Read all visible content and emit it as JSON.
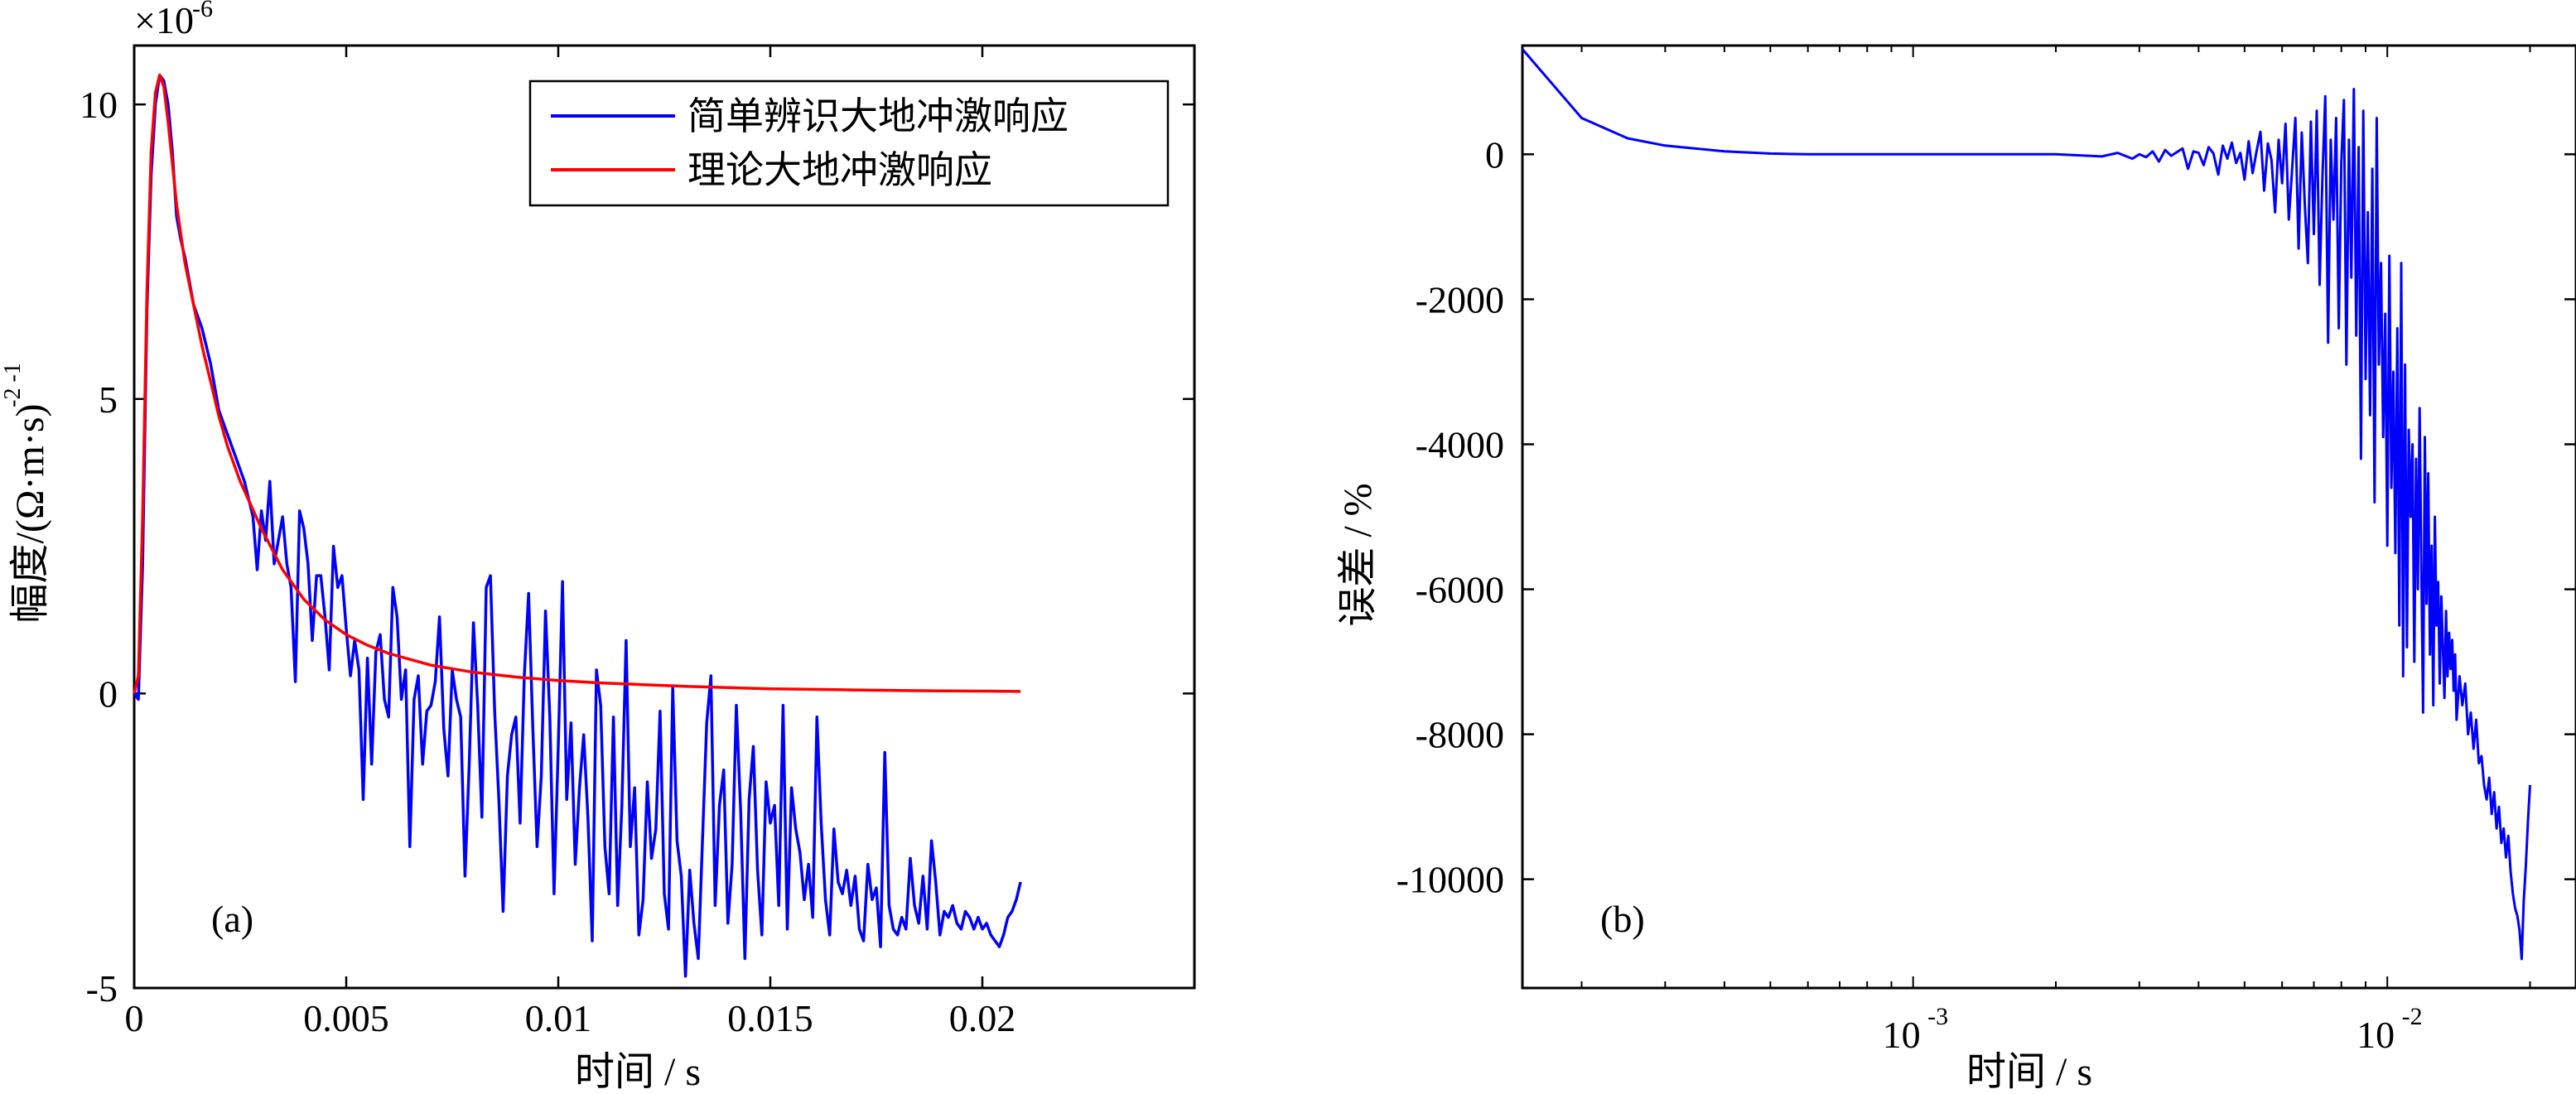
{
  "chart_data": [
    {
      "type": "line",
      "panel_label": "(a)",
      "xlabel": "时间 / s",
      "ylabel": "幅度/(Ω·m·s)",
      "ylabel_sup": "-2 -1",
      "yscale_multiplier": "×10",
      "yscale_exponent": "-6",
      "xlim": [
        0,
        0.025
      ],
      "ylim": [
        -5,
        11
      ],
      "xticks": [
        0,
        0.005,
        0.01,
        0.015,
        0.02
      ],
      "xtick_labels": [
        "0",
        "0.005",
        "0.01",
        "0.015",
        "0.02"
      ],
      "yticks": [
        -5,
        0,
        5,
        10
      ],
      "ytick_labels": [
        "-5",
        "0",
        "5",
        "10"
      ],
      "legend_position": "top-right",
      "series": [
        {
          "name": "简单辨识大地冲激响应",
          "color": "#0000ff",
          "x": [
            0,
            0.0001,
            0.0002,
            0.0003,
            0.0004,
            0.0005,
            0.0006,
            0.0007,
            0.0008,
            0.0009,
            0.001,
            0.0011,
            0.0012,
            0.0013,
            0.0014,
            0.0016,
            0.0018,
            0.002,
            0.0022,
            0.0024,
            0.0026,
            0.0028,
            0.0029,
            0.003,
            0.0031,
            0.0032,
            0.0033,
            0.0034,
            0.0035,
            0.0036,
            0.0037,
            0.0038,
            0.0039,
            0.004,
            0.0041,
            0.0042,
            0.0043,
            0.0044,
            0.0045,
            0.0046,
            0.0047,
            0.0048,
            0.0049,
            0.005,
            0.0051,
            0.0052,
            0.0053,
            0.0054,
            0.0055,
            0.0056,
            0.0057,
            0.0058,
            0.0059,
            0.006,
            0.0061,
            0.0062,
            0.0063,
            0.0064,
            0.0065,
            0.0066,
            0.0067,
            0.0068,
            0.0069,
            0.007,
            0.0071,
            0.0072,
            0.0073,
            0.0074,
            0.0075,
            0.0076,
            0.0077,
            0.0078,
            0.0079,
            0.008,
            0.0081,
            0.0082,
            0.0083,
            0.0084,
            0.0085,
            0.0086,
            0.0087,
            0.0088,
            0.0089,
            0.009,
            0.0091,
            0.0092,
            0.0093,
            0.0094,
            0.0095,
            0.0096,
            0.0097,
            0.0098,
            0.0099,
            0.01,
            0.0101,
            0.0102,
            0.0103,
            0.0104,
            0.0105,
            0.0106,
            0.0107,
            0.0108,
            0.0109,
            0.011,
            0.0111,
            0.0112,
            0.0113,
            0.0114,
            0.0115,
            0.0116,
            0.0117,
            0.0118,
            0.0119,
            0.012,
            0.0121,
            0.0122,
            0.0123,
            0.0124,
            0.0125,
            0.0126,
            0.0127,
            0.0128,
            0.0129,
            0.013,
            0.0131,
            0.0132,
            0.0133,
            0.0134,
            0.0135,
            0.0136,
            0.0137,
            0.0138,
            0.0139,
            0.014,
            0.0141,
            0.0142,
            0.0143,
            0.0144,
            0.0145,
            0.0146,
            0.0147,
            0.0148,
            0.0149,
            0.015,
            0.0151,
            0.0152,
            0.0153,
            0.0154,
            0.0155,
            0.0156,
            0.0157,
            0.0158,
            0.0159,
            0.016,
            0.0161,
            0.0162,
            0.0163,
            0.0164,
            0.0165,
            0.0166,
            0.0167,
            0.0168,
            0.0169,
            0.017,
            0.0171,
            0.0172,
            0.0173,
            0.0174,
            0.0175,
            0.0176,
            0.0177,
            0.0178,
            0.0179,
            0.018,
            0.0181,
            0.0182,
            0.0183,
            0.0184,
            0.0185,
            0.0186,
            0.0187,
            0.0188,
            0.0189,
            0.019,
            0.0191,
            0.0192,
            0.0193,
            0.0194,
            0.0195,
            0.0196,
            0.0197,
            0.0198,
            0.0199,
            0.02,
            0.0201,
            0.0202,
            0.0203,
            0.0204,
            0.0205,
            0.0206,
            0.0207,
            0.0208,
            0.0209
          ],
          "y": [
            0,
            -0.1,
            2.2,
            6.5,
            8.8,
            10.0,
            10.5,
            10.4,
            10.0,
            9.2,
            8.1,
            7.7,
            7.4,
            7.0,
            6.6,
            6.2,
            5.6,
            4.8,
            4.4,
            4.0,
            3.6,
            3.0,
            2.1,
            3.1,
            2.6,
            3.6,
            2.2,
            2.6,
            3.0,
            2.2,
            1.8,
            0.2,
            3.1,
            2.8,
            2.2,
            0.9,
            2.0,
            2.0,
            1.3,
            0.4,
            2.5,
            1.8,
            2.0,
            1.1,
            0.3,
            0.9,
            0.4,
            -1.8,
            0.6,
            -1.2,
            0.7,
            1.0,
            -0.1,
            -0.4,
            1.8,
            1.3,
            -0.1,
            0.4,
            -2.6,
            -0.1,
            0.3,
            -1.2,
            -0.3,
            -0.2,
            0.2,
            1.3,
            -0.6,
            -1.4,
            0.4,
            -0.1,
            -0.4,
            -3.1,
            -1.2,
            1.2,
            -0.2,
            -2.1,
            1.8,
            2.0,
            -0.3,
            -1.8,
            -3.7,
            -1.4,
            -0.7,
            -0.4,
            -2.2,
            0.3,
            1.7,
            -0.6,
            -2.6,
            -1.4,
            1.4,
            -0.4,
            -3.4,
            -0.9,
            1.9,
            -1.8,
            -0.5,
            -2.9,
            -1.6,
            -0.7,
            -2.1,
            -4.2,
            0.4,
            -0.2,
            -2.6,
            -3.4,
            -0.4,
            -3.6,
            -1.9,
            0.9,
            -2.6,
            -1.6,
            -4.1,
            -3.5,
            -1.5,
            -2.8,
            -2.3,
            -0.3,
            -3.4,
            -4.0,
            0.1,
            -2.5,
            -3.1,
            -4.8,
            -3.0,
            -3.9,
            -4.5,
            -2.5,
            -0.5,
            0.3,
            -3.6,
            -1.9,
            -1.3,
            -3.9,
            -2.9,
            -0.2,
            -2.0,
            -4.5,
            -1.8,
            -0.9,
            -3.0,
            -4.1,
            -1.5,
            -2.2,
            -1.9,
            -3.6,
            -0.2,
            -4.0,
            -1.6,
            -2.3,
            -2.7,
            -3.5,
            -2.9,
            -3.8,
            -0.4,
            -2.2,
            -3.5,
            -4.1,
            -2.3,
            -3.2,
            -3.4,
            -3.0,
            -3.6,
            -3.1,
            -4.0,
            -4.2,
            -2.9,
            -3.5,
            -3.3,
            -4.3,
            -1.0,
            -3.6,
            -4.0,
            -4.1,
            -3.8,
            -4.0,
            -2.8,
            -3.6,
            -3.9,
            -3.1,
            -4.0,
            -2.5,
            -3.2,
            -4.1,
            -3.7,
            -3.8,
            -3.6,
            -3.9,
            -4.0,
            -3.7,
            -3.8,
            -4.0,
            -3.8,
            -4.0,
            -3.9,
            -4.1,
            -4.2,
            -4.3,
            -4.1,
            -3.8,
            -3.7,
            -3.5,
            -3.2
          ],
          "y_unit_note": ""
        },
        {
          "name": "理论大地冲激响应",
          "color": "#ff0000",
          "x": [
            0,
            0.0001,
            0.0002,
            0.0003,
            0.0004,
            0.0005,
            0.0006,
            0.0007,
            0.0008,
            0.0009,
            0.001,
            0.0012,
            0.0014,
            0.0016,
            0.0018,
            0.002,
            0.0022,
            0.0025,
            0.003,
            0.0035,
            0.004,
            0.0045,
            0.005,
            0.0055,
            0.006,
            0.007,
            0.008,
            0.009,
            0.01,
            0.011,
            0.012,
            0.013,
            0.014,
            0.015,
            0.016,
            0.017,
            0.018,
            0.019,
            0.02,
            0.0209
          ],
          "y": [
            0,
            0.3,
            3.0,
            6.8,
            9.2,
            10.2,
            10.5,
            10.3,
            9.7,
            9.0,
            8.3,
            7.3,
            6.6,
            5.9,
            5.3,
            4.7,
            4.2,
            3.6,
            2.8,
            2.1,
            1.6,
            1.25,
            1.0,
            0.82,
            0.68,
            0.48,
            0.36,
            0.28,
            0.22,
            0.18,
            0.15,
            0.12,
            0.1,
            0.08,
            0.07,
            0.06,
            0.05,
            0.045,
            0.04,
            0.035
          ]
        }
      ]
    },
    {
      "type": "line",
      "panel_label": "(b)",
      "xlabel": "时间 / s",
      "ylabel": "误差 / %",
      "xscale": "log",
      "xlim": [
        0.00015,
        0.025
      ],
      "ylim": [
        -11500,
        1500
      ],
      "xticks": [
        0.001,
        0.01
      ],
      "xtick_labels": [
        "10",
        "10"
      ],
      "xtick_exponents": [
        "-3",
        "-2"
      ],
      "yticks": [
        0,
        -2000,
        -4000,
        -6000,
        -8000,
        -10000
      ],
      "ytick_labels": [
        "0",
        "-2000",
        "-4000",
        "-6000",
        "-8000",
        "-10000"
      ],
      "series": [
        {
          "name": "",
          "color": "#0000ff",
          "x": [
            0.00015,
            0.0002,
            0.00025,
            0.0003,
            0.0004,
            0.0005,
            0.0006,
            0.0008,
            0.001,
            0.0015,
            0.002,
            0.0025,
            0.0027,
            0.0029,
            0.003,
            0.0031,
            0.0032,
            0.0033,
            0.0034,
            0.0035,
            0.0036,
            0.0037,
            0.0038,
            0.0039,
            0.004,
            0.0041,
            0.0042,
            0.0043,
            0.0044,
            0.0045,
            0.0046,
            0.0047,
            0.0048,
            0.0049,
            0.005,
            0.0051,
            0.0052,
            0.0053,
            0.0054,
            0.0055,
            0.0056,
            0.0057,
            0.0058,
            0.0059,
            0.006,
            0.0061,
            0.0062,
            0.0063,
            0.0064,
            0.0065,
            0.0066,
            0.0067,
            0.0068,
            0.0069,
            0.007,
            0.0071,
            0.0072,
            0.0073,
            0.0074,
            0.0075,
            0.0076,
            0.0077,
            0.0078,
            0.0079,
            0.008,
            0.0081,
            0.0082,
            0.0083,
            0.0084,
            0.0085,
            0.0086,
            0.0087,
            0.0088,
            0.0089,
            0.009,
            0.0091,
            0.0092,
            0.0093,
            0.0094,
            0.0095,
            0.0096,
            0.0097,
            0.0098,
            0.0099,
            0.01,
            0.0101,
            0.0102,
            0.0103,
            0.0104,
            0.0105,
            0.0106,
            0.0107,
            0.0108,
            0.0109,
            0.011,
            0.0111,
            0.0112,
            0.0113,
            0.0114,
            0.0115,
            0.0116,
            0.0117,
            0.0118,
            0.0119,
            0.012,
            0.0121,
            0.0122,
            0.0123,
            0.0124,
            0.0125,
            0.0126,
            0.0127,
            0.0128,
            0.0129,
            0.013,
            0.0131,
            0.0132,
            0.0133,
            0.0134,
            0.0135,
            0.0136,
            0.0137,
            0.0138,
            0.0139,
            0.014,
            0.0142,
            0.0144,
            0.0146,
            0.0148,
            0.015,
            0.0152,
            0.0154,
            0.0156,
            0.0158,
            0.016,
            0.0162,
            0.0164,
            0.0166,
            0.0168,
            0.017,
            0.0172,
            0.0174,
            0.0176,
            0.0178,
            0.018,
            0.0182,
            0.0184,
            0.0186,
            0.0188,
            0.019,
            0.0192,
            0.0194,
            0.0196,
            0.0198,
            0.02
          ],
          "y": [
            1450,
            500,
            220,
            120,
            40,
            10,
            0,
            0,
            0,
            0,
            0,
            -30,
            20,
            -60,
            0,
            -40,
            40,
            -100,
            60,
            -20,
            30,
            80,
            -200,
            40,
            20,
            -150,
            100,
            10,
            -280,
            120,
            -60,
            160,
            -120,
            20,
            -350,
            180,
            -260,
            40,
            310,
            -500,
            150,
            -80,
            -800,
            200,
            -400,
            420,
            -900,
            -200,
            500,
            -1300,
            300,
            -700,
            -1500,
            450,
            -1100,
            600,
            -1800,
            -300,
            800,
            -2600,
            200,
            -900,
            500,
            -2400,
            -100,
            750,
            -2900,
            200,
            -1700,
            900,
            -2500,
            100,
            -4200,
            600,
            -3100,
            -800,
            -3600,
            -200,
            -4800,
            500,
            -2900,
            -1500,
            -3900,
            -2200,
            -5400,
            -1400,
            -4600,
            -3000,
            -5500,
            -2400,
            -6500,
            -1500,
            -7200,
            -2900,
            -6800,
            -3800,
            -5000,
            -4000,
            -7000,
            -4200,
            -6000,
            -3500,
            -5700,
            -7700,
            -3900,
            -6200,
            -4400,
            -6900,
            -5400,
            -7600,
            -5000,
            -6500,
            -5900,
            -7300,
            -6100,
            -6800,
            -7500,
            -6300,
            -7200,
            -6600,
            -7100,
            -6700,
            -7400,
            -6900,
            -7800,
            -7200,
            -7600,
            -7300,
            -8000,
            -7700,
            -8200,
            -7800,
            -8400,
            -8300,
            -8700,
            -8900,
            -8600,
            -9100,
            -8800,
            -9300,
            -9000,
            -9500,
            -9300,
            -9700,
            -9400,
            -9900,
            -10200,
            -10400,
            -10500,
            -10700,
            -11100,
            -10300,
            -9800,
            -9200,
            -8700
          ]
        }
      ]
    }
  ]
}
